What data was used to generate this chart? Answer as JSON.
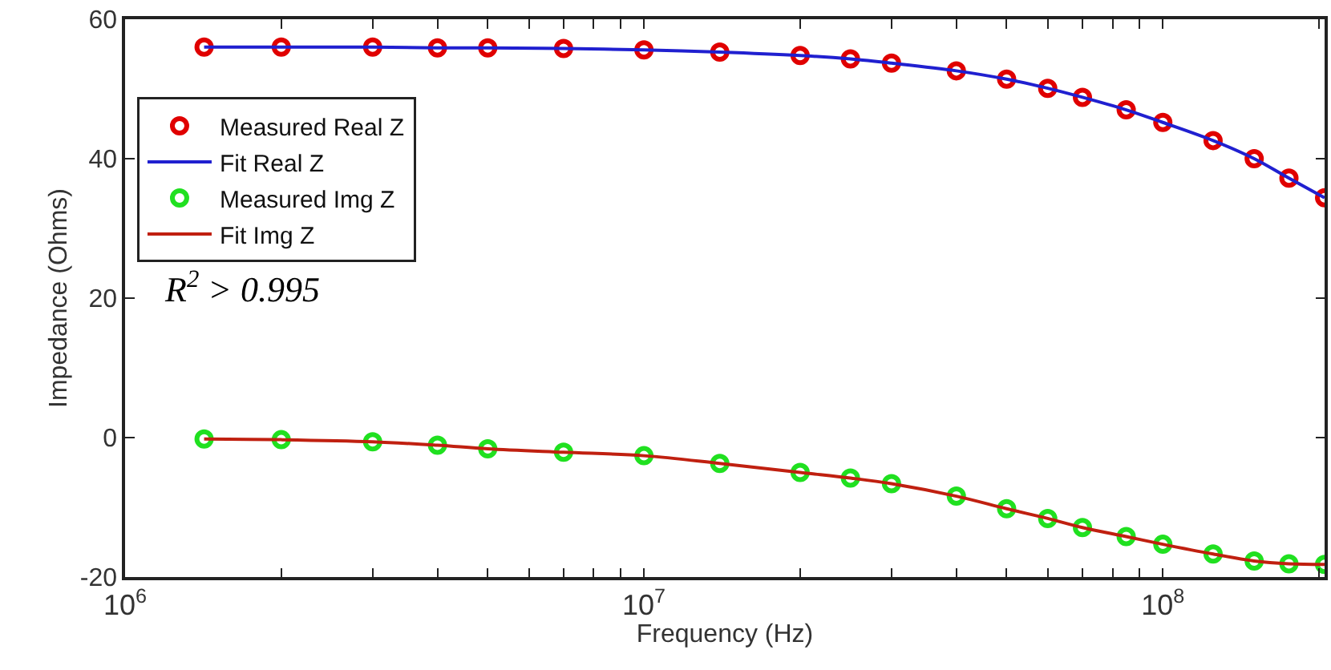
{
  "chart_data": {
    "type": "line",
    "xlabel": "Frequency (Hz)",
    "ylabel": "Impedance (Ohms)",
    "log": "x",
    "legend": "top left",
    "x": [
      1420000,
      2000000,
      3000000,
      4000000,
      5000000,
      7000000,
      10000000,
      14000000,
      20000000,
      25000000,
      30000000,
      40000000,
      50000000,
      60000000,
      70000000,
      85000000,
      100000000,
      125000000,
      150000000,
      175000000,
      205000000
    ],
    "series": [
      {
        "name": "Measured Real Z",
        "type": "scatter",
        "marker": "circle",
        "color": "#e00000",
        "values": [
          56.0,
          56.0,
          56.0,
          55.9,
          55.9,
          55.8,
          55.6,
          55.3,
          54.8,
          54.3,
          53.7,
          52.6,
          51.4,
          50.1,
          48.8,
          47.0,
          45.2,
          42.6,
          40.0,
          37.2,
          34.4
        ]
      },
      {
        "name": "Fit Real Z",
        "color": "#2020d0",
        "values": [
          56.0,
          56.0,
          56.0,
          55.9,
          55.9,
          55.8,
          55.6,
          55.3,
          54.8,
          54.3,
          53.7,
          52.6,
          51.4,
          50.1,
          48.8,
          47.0,
          45.2,
          42.6,
          40.0,
          37.2,
          34.4
        ]
      },
      {
        "name": "Measured Img Z",
        "type": "scatter",
        "marker": "circle",
        "color": "#20e020",
        "values": [
          -0.2,
          -0.3,
          -0.6,
          -1.1,
          -1.6,
          -2.1,
          -2.6,
          -3.7,
          -5.0,
          -5.8,
          -6.6,
          -8.4,
          -10.2,
          -11.6,
          -12.9,
          -14.2,
          -15.3,
          -16.7,
          -17.7,
          -18.1,
          -18.2
        ]
      },
      {
        "name": "Fit Img Z",
        "color": "#c02010",
        "values": [
          -0.2,
          -0.3,
          -0.6,
          -1.1,
          -1.6,
          -2.1,
          -2.6,
          -3.7,
          -5.0,
          -5.8,
          -6.6,
          -8.4,
          -10.2,
          -11.6,
          -12.9,
          -14.2,
          -15.3,
          -16.7,
          -17.7,
          -18.1,
          -18.2
        ]
      }
    ],
    "xlim": [
      1000000,
      205000000
    ],
    "xticks": [
      {
        "value": 1000000,
        "label": "10$^{6}$"
      },
      {
        "value": 2000000,
        "label": null
      },
      {
        "value": 3000000,
        "label": null
      },
      {
        "value": 4000000,
        "label": null
      },
      {
        "value": 5000000,
        "label": null
      },
      {
        "value": 6000000,
        "label": null
      },
      {
        "value": 7000000,
        "label": null
      },
      {
        "value": 8000000,
        "label": null
      },
      {
        "value": 9000000,
        "label": null
      },
      {
        "value": 10000000,
        "label": "10$^{7}$"
      },
      {
        "value": 20000000,
        "label": null
      },
      {
        "value": 30000000,
        "label": null
      },
      {
        "value": 40000000,
        "label": null
      },
      {
        "value": 50000000,
        "label": null
      },
      {
        "value": 60000000,
        "label": null
      },
      {
        "value": 70000000,
        "label": null
      },
      {
        "value": 80000000,
        "label": null
      },
      {
        "value": 90000000,
        "label": null
      },
      {
        "value": 100000000,
        "label": "10$^{8}$"
      },
      {
        "value": 200000000,
        "label": null
      }
    ],
    "ylim": [
      -20,
      60
    ],
    "yticks": [
      -20,
      0,
      20,
      40,
      60
    ],
    "annotations": [
      "R$^{2}$ > 0.995"
    ]
  }
}
